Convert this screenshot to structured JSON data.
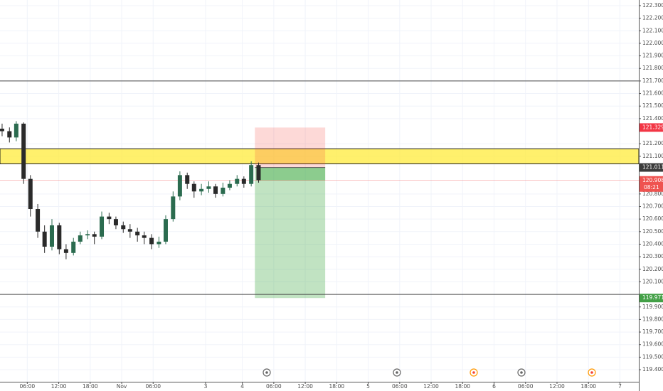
{
  "chart_data": {
    "type": "candlestick",
    "xlim": [
      0.8,
      122.6
    ],
    "ylim": [
      119.304,
      122.345
    ],
    "xticks": [
      {
        "value": 6,
        "label": "06:00"
      },
      {
        "value": 12,
        "label": "12:00"
      },
      {
        "value": 18,
        "label": "18:00"
      },
      {
        "value": 24,
        "label": "Nov"
      },
      {
        "value": 30,
        "label": "06:00"
      },
      {
        "value": 40,
        "label": "3"
      },
      {
        "value": 47,
        "label": "4"
      },
      {
        "value": 53,
        "label": "06:00"
      },
      {
        "value": 59,
        "label": "12:00"
      },
      {
        "value": 65,
        "label": "18:00"
      },
      {
        "value": 71,
        "label": "5"
      },
      {
        "value": 77,
        "label": "06:00"
      },
      {
        "value": 83,
        "label": "12:00"
      },
      {
        "value": 89,
        "label": "18:00"
      },
      {
        "value": 95,
        "label": "6"
      },
      {
        "value": 101,
        "label": "06:00"
      },
      {
        "value": 107,
        "label": "12:00"
      },
      {
        "value": 113,
        "label": "18:00"
      },
      {
        "value": 119,
        "label": "7"
      }
    ],
    "yticks": [
      {
        "value": 122.3,
        "label": "122.300"
      },
      {
        "value": 122.2,
        "label": "122.200"
      },
      {
        "value": 122.1,
        "label": "122.100"
      },
      {
        "value": 122.0,
        "label": "122.000"
      },
      {
        "value": 121.9,
        "label": "121.900"
      },
      {
        "value": 121.8,
        "label": "121.800"
      },
      {
        "value": 121.7,
        "label": "121.700"
      },
      {
        "value": 121.6,
        "label": "121.600"
      },
      {
        "value": 121.5,
        "label": "121.500"
      },
      {
        "value": 121.4,
        "label": "121.400"
      },
      {
        "value": 121.2,
        "label": "121.200"
      },
      {
        "value": 121.1,
        "label": "121.100"
      },
      {
        "value": 120.8,
        "label": "120.800"
      },
      {
        "value": 120.7,
        "label": "120.700"
      },
      {
        "value": 120.6,
        "label": "120.600"
      },
      {
        "value": 120.5,
        "label": "120.500"
      },
      {
        "value": 120.4,
        "label": "120.400"
      },
      {
        "value": 120.3,
        "label": "120.300"
      },
      {
        "value": 120.2,
        "label": "120.200"
      },
      {
        "value": 120.1,
        "label": "120.100"
      },
      {
        "value": 119.9,
        "label": "119.900"
      },
      {
        "value": 119.8,
        "label": "119.800"
      },
      {
        "value": 119.7,
        "label": "119.700"
      },
      {
        "value": 119.6,
        "label": "119.600"
      },
      {
        "value": 119.5,
        "label": "119.500"
      },
      {
        "value": 119.4,
        "label": "119.400"
      }
    ],
    "grid": true,
    "up_color": "#2b6b4f",
    "down_color": "#2a2a2a",
    "x": [
      1.2,
      2.6,
      3.9,
      5.3,
      6.6,
      8.0,
      9.3,
      10.7,
      12.1,
      13.4,
      14.8,
      16.1,
      17.5,
      18.8,
      20.2,
      21.6,
      22.9,
      24.3,
      25.6,
      27.0,
      28.3,
      29.7,
      31.1,
      32.4,
      33.8,
      35.1,
      36.5,
      37.8,
      39.2,
      40.6,
      41.9,
      43.3,
      44.6,
      46.0,
      47.3,
      48.7,
      50.1
    ],
    "open": [
      121.32,
      121.3,
      121.25,
      121.36,
      120.92,
      120.68,
      120.5,
      120.38,
      120.55,
      120.36,
      120.33,
      120.42,
      120.47,
      120.48,
      120.46,
      120.62,
      120.6,
      120.55,
      120.52,
      120.5,
      120.47,
      120.45,
      120.4,
      120.42,
      120.6,
      120.78,
      120.95,
      120.88,
      120.82,
      120.84,
      120.86,
      120.8,
      120.85,
      120.88,
      120.92,
      120.88,
      121.03
    ],
    "high": [
      121.36,
      121.33,
      121.38,
      121.37,
      120.95,
      120.72,
      120.55,
      120.6,
      120.57,
      120.4,
      120.45,
      120.5,
      120.51,
      120.5,
      120.66,
      120.65,
      120.62,
      120.58,
      120.56,
      120.53,
      120.5,
      120.48,
      120.46,
      120.63,
      120.82,
      120.98,
      120.97,
      120.9,
      120.88,
      120.9,
      120.88,
      120.89,
      120.91,
      120.95,
      120.94,
      121.06,
      121.05
    ],
    "low": [
      121.26,
      121.21,
      121.22,
      120.88,
      120.62,
      120.45,
      120.33,
      120.35,
      120.32,
      120.28,
      120.31,
      120.4,
      120.44,
      120.4,
      120.44,
      120.56,
      120.52,
      120.49,
      120.45,
      120.42,
      120.4,
      120.36,
      120.37,
      120.4,
      120.58,
      120.75,
      120.84,
      120.77,
      120.79,
      120.81,
      120.77,
      120.78,
      120.83,
      120.86,
      120.85,
      120.86,
      120.89
    ],
    "close": [
      121.3,
      121.25,
      121.36,
      120.92,
      120.68,
      120.5,
      120.38,
      120.55,
      120.36,
      120.33,
      120.42,
      120.47,
      120.48,
      120.46,
      120.62,
      120.6,
      120.55,
      120.52,
      120.5,
      120.47,
      120.45,
      120.4,
      120.42,
      120.6,
      120.78,
      120.95,
      120.88,
      120.82,
      120.84,
      120.86,
      120.8,
      120.85,
      120.88,
      120.92,
      120.88,
      121.03,
      120.91
    ],
    "levels": [
      121.7,
      120.0
    ],
    "zone": [
      121.04,
      121.16
    ],
    "position": {
      "x_start": 49.4,
      "x_end": 62.8,
      "stop": 121.329,
      "entry": 121.011,
      "target": 119.971
    },
    "current_price": 120.908,
    "countdown": "08:21"
  }
}
